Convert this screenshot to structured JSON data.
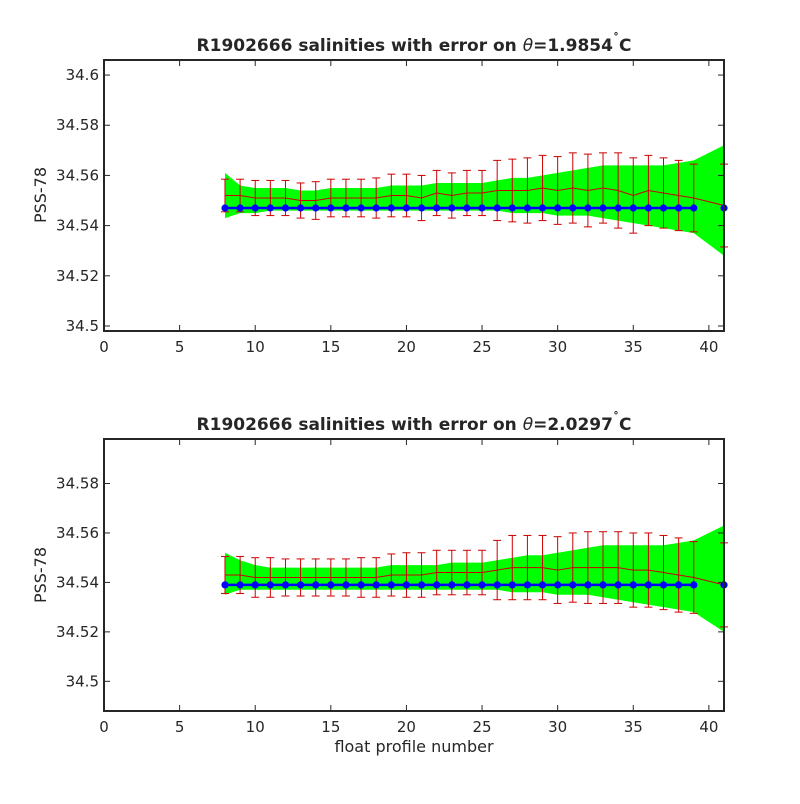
{
  "chart_data": [
    {
      "type": "line",
      "title": "R1902666 salinities with error on θ=1.9854 ˚C",
      "title_parts": {
        "prefix": "R1902666 salinities with error on ",
        "symbol": "θ",
        "suffix": "=1.9854",
        "degree": "˚",
        "unit": "C"
      },
      "xlabel": "",
      "ylabel": "PSS-78",
      "xlim": [
        0,
        41
      ],
      "ylim": [
        34.498,
        34.606
      ],
      "xticks": [
        0,
        5,
        10,
        15,
        20,
        25,
        30,
        35,
        40
      ],
      "xtick_labels": [
        "0",
        "5",
        "10",
        "15",
        "20",
        "25",
        "30",
        "35",
        "40"
      ],
      "yticks": [
        34.5,
        34.52,
        34.54,
        34.56,
        34.58,
        34.6
      ],
      "ytick_labels": [
        "34.5",
        "34.52",
        "34.54",
        "34.56",
        "34.58",
        "34.6"
      ],
      "grid": false,
      "colors": {
        "band": "#00ff00",
        "mapped": "#cc0000",
        "calibrated": "#0000ff"
      },
      "x": [
        8,
        9,
        10,
        11,
        12,
        13,
        14,
        15,
        16,
        17,
        18,
        19,
        20,
        21,
        22,
        23,
        24,
        25,
        26,
        27,
        28,
        29,
        30,
        31,
        32,
        33,
        34,
        35,
        36,
        37,
        38,
        39,
        41
      ],
      "series": [
        {
          "role": "error band (green)",
          "upper": [
            34.561,
            34.556,
            34.555,
            34.555,
            34.555,
            34.554,
            34.554,
            34.555,
            34.555,
            34.555,
            34.555,
            34.556,
            34.556,
            34.556,
            34.557,
            34.557,
            34.557,
            34.557,
            34.558,
            34.559,
            34.559,
            34.56,
            34.561,
            34.562,
            34.563,
            34.564,
            34.564,
            34.564,
            34.564,
            34.564,
            34.565,
            34.566,
            34.572
          ],
          "lower": [
            34.543,
            34.545,
            34.545,
            34.546,
            34.546,
            34.546,
            34.546,
            34.546,
            34.546,
            34.546,
            34.546,
            34.546,
            34.546,
            34.546,
            34.546,
            34.546,
            34.546,
            34.546,
            34.546,
            34.545,
            34.545,
            34.545,
            34.544,
            34.544,
            34.544,
            34.543,
            34.542,
            34.541,
            34.54,
            34.539,
            34.538,
            34.537,
            34.528
          ]
        },
        {
          "role": "mapped salinity with error bars (red)",
          "values": [
            34.552,
            34.552,
            34.551,
            34.551,
            34.551,
            34.55,
            34.55,
            34.551,
            34.551,
            34.551,
            34.551,
            34.552,
            34.552,
            34.551,
            34.553,
            34.552,
            34.553,
            34.553,
            34.554,
            34.554,
            34.554,
            34.555,
            34.554,
            34.555,
            34.554,
            34.555,
            34.554,
            34.552,
            34.554,
            34.553,
            34.552,
            34.551,
            34.548
          ],
          "error": [
            0.0065,
            0.0065,
            0.007,
            0.007,
            0.007,
            0.007,
            0.0075,
            0.0075,
            0.0075,
            0.0075,
            0.008,
            0.0085,
            0.0085,
            0.009,
            0.009,
            0.009,
            0.009,
            0.009,
            0.012,
            0.0125,
            0.013,
            0.013,
            0.0135,
            0.014,
            0.0145,
            0.014,
            0.015,
            0.015,
            0.014,
            0.014,
            0.014,
            0.0135,
            0.0165
          ]
        },
        {
          "role": "calibrated salinity (blue)",
          "values": [
            34.547,
            34.547,
            34.547,
            34.547,
            34.547,
            34.547,
            34.547,
            34.547,
            34.547,
            34.547,
            34.547,
            34.547,
            34.547,
            34.547,
            34.547,
            34.547,
            34.547,
            34.547,
            34.547,
            34.547,
            34.547,
            34.547,
            34.547,
            34.547,
            34.547,
            34.547,
            34.547,
            34.547,
            34.547,
            34.547,
            34.547,
            34.547,
            34.547
          ]
        }
      ]
    },
    {
      "type": "line",
      "title": "R1902666 salinities with error on θ=2.0297 ˚C",
      "title_parts": {
        "prefix": "R1902666 salinities with error on ",
        "symbol": "θ",
        "suffix": "=2.0297",
        "degree": "˚",
        "unit": "C"
      },
      "xlabel": "float profile number",
      "ylabel": "PSS-78",
      "xlim": [
        0,
        41
      ],
      "ylim": [
        34.488,
        34.598
      ],
      "xticks": [
        0,
        5,
        10,
        15,
        20,
        25,
        30,
        35,
        40
      ],
      "xtick_labels": [
        "0",
        "5",
        "10",
        "15",
        "20",
        "25",
        "30",
        "35",
        "40"
      ],
      "yticks": [
        34.5,
        34.52,
        34.54,
        34.56,
        34.58
      ],
      "ytick_labels": [
        "34.5",
        "34.52",
        "34.54",
        "34.56",
        "34.58"
      ],
      "grid": false,
      "colors": {
        "band": "#00ff00",
        "mapped": "#cc0000",
        "calibrated": "#0000ff"
      },
      "x": [
        8,
        9,
        10,
        11,
        12,
        13,
        14,
        15,
        16,
        17,
        18,
        19,
        20,
        21,
        22,
        23,
        24,
        25,
        26,
        27,
        28,
        29,
        30,
        31,
        32,
        33,
        34,
        35,
        36,
        37,
        38,
        39,
        41
      ],
      "series": [
        {
          "role": "error band (green)",
          "upper": [
            34.552,
            34.549,
            34.547,
            34.546,
            34.546,
            34.546,
            34.546,
            34.546,
            34.546,
            34.546,
            34.546,
            34.547,
            34.547,
            34.547,
            34.547,
            34.548,
            34.548,
            34.548,
            34.549,
            34.55,
            34.551,
            34.551,
            34.552,
            34.553,
            34.554,
            34.555,
            34.555,
            34.555,
            34.555,
            34.555,
            34.556,
            34.557,
            34.563
          ],
          "lower": [
            34.535,
            34.537,
            34.537,
            34.537,
            34.537,
            34.537,
            34.537,
            34.537,
            34.537,
            34.537,
            34.537,
            34.537,
            34.537,
            34.537,
            34.537,
            34.537,
            34.537,
            34.537,
            34.537,
            34.536,
            34.536,
            34.536,
            34.535,
            34.535,
            34.535,
            34.534,
            34.533,
            34.532,
            34.531,
            34.53,
            34.529,
            34.528,
            34.52
          ]
        },
        {
          "role": "mapped salinity with error bars (red)",
          "values": [
            34.543,
            34.543,
            34.542,
            34.542,
            34.542,
            34.542,
            34.542,
            34.542,
            34.542,
            34.542,
            34.542,
            34.543,
            34.543,
            34.543,
            34.544,
            34.544,
            34.544,
            34.544,
            34.545,
            34.546,
            34.546,
            34.546,
            34.545,
            34.546,
            34.546,
            34.546,
            34.546,
            34.545,
            34.545,
            34.544,
            34.543,
            34.542,
            34.539
          ],
          "error": [
            0.0075,
            0.0075,
            0.008,
            0.008,
            0.0075,
            0.0075,
            0.0075,
            0.0075,
            0.0075,
            0.008,
            0.008,
            0.0085,
            0.009,
            0.009,
            0.009,
            0.009,
            0.009,
            0.009,
            0.012,
            0.013,
            0.013,
            0.013,
            0.0135,
            0.014,
            0.0145,
            0.0145,
            0.0145,
            0.015,
            0.015,
            0.015,
            0.015,
            0.0145,
            0.017
          ]
        },
        {
          "role": "calibrated salinity (blue)",
          "values": [
            34.539,
            34.539,
            34.539,
            34.539,
            34.539,
            34.539,
            34.539,
            34.539,
            34.539,
            34.539,
            34.539,
            34.539,
            34.539,
            34.539,
            34.539,
            34.539,
            34.539,
            34.539,
            34.539,
            34.539,
            34.539,
            34.539,
            34.539,
            34.539,
            34.539,
            34.539,
            34.539,
            34.539,
            34.539,
            34.539,
            34.539,
            34.539,
            34.539
          ]
        }
      ]
    }
  ]
}
